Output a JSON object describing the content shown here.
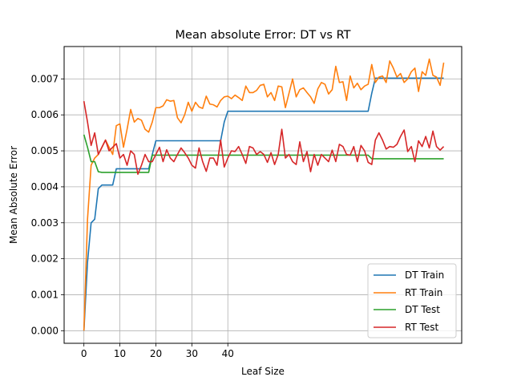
{
  "chart_data": {
    "type": "line",
    "title": "Mean absolute Error: DT vs RT",
    "xlabel": "Leaf Size",
    "ylabel": "Mean Absolute Error",
    "xlim": [
      -5.5,
      105
    ],
    "ylim": [
      -0.00035,
      0.0079
    ],
    "xticks": [
      0,
      10,
      20,
      30,
      40
    ],
    "xtick_labels": [
      "0",
      "10",
      "20",
      "30",
      "40"
    ],
    "yticks": [
      0.0,
      0.001,
      0.002,
      0.003,
      0.004,
      0.005,
      0.006,
      0.007
    ],
    "ytick_labels": [
      "0.000",
      "0.001",
      "0.002",
      "0.003",
      "0.004",
      "0.005",
      "0.006",
      "0.007"
    ],
    "grid": true,
    "legend_position": "lower-right",
    "series": [
      {
        "name": "DT Train",
        "color": "#1f77b4",
        "x": [
          0,
          1,
          2,
          3,
          4,
          5,
          6,
          7,
          8,
          9,
          10,
          11,
          12,
          13,
          14,
          15,
          16,
          17,
          18,
          19,
          20,
          21,
          22,
          23,
          24,
          25,
          26,
          27,
          28,
          29,
          30,
          31,
          32,
          33,
          34,
          35,
          36,
          37,
          38,
          39,
          40,
          41,
          42,
          43,
          44,
          45,
          46,
          47,
          48,
          49,
          50,
          51,
          52,
          53,
          54,
          55,
          56,
          57,
          58,
          59,
          60,
          61,
          62,
          63,
          64,
          65,
          66,
          67,
          68,
          69,
          70,
          71,
          72,
          73,
          74,
          75,
          76,
          77,
          78,
          79,
          80,
          81,
          82,
          83,
          84,
          85,
          86,
          87,
          88,
          89,
          90,
          91,
          92,
          93,
          94,
          95,
          96,
          97,
          98,
          99,
          100
        ],
        "values": [
          0.0,
          0.0019,
          0.003,
          0.0031,
          0.00395,
          0.00405,
          0.00405,
          0.00405,
          0.00405,
          0.0045,
          0.0045,
          0.0045,
          0.0045,
          0.0045,
          0.0045,
          0.0045,
          0.0045,
          0.0045,
          0.0045,
          0.0049,
          0.00528,
          0.00528,
          0.00528,
          0.00528,
          0.00528,
          0.00528,
          0.00528,
          0.00528,
          0.00528,
          0.00528,
          0.00528,
          0.00528,
          0.00528,
          0.00528,
          0.00528,
          0.00528,
          0.00528,
          0.00528,
          0.00528,
          0.0058,
          0.0061,
          0.0061,
          0.0061,
          0.0061,
          0.0061,
          0.0061,
          0.0061,
          0.0061,
          0.0061,
          0.0061,
          0.0061,
          0.0061,
          0.0061,
          0.0061,
          0.0061,
          0.0061,
          0.0061,
          0.0061,
          0.0061,
          0.0061,
          0.0061,
          0.0061,
          0.0061,
          0.0061,
          0.0061,
          0.0061,
          0.0061,
          0.0061,
          0.0061,
          0.0061,
          0.0061,
          0.0061,
          0.0061,
          0.0061,
          0.0061,
          0.0061,
          0.0061,
          0.0061,
          0.0061,
          0.0061,
          0.0066,
          0.00702,
          0.00702,
          0.00702,
          0.00702,
          0.00702,
          0.00702,
          0.00702,
          0.00702,
          0.00702,
          0.00702,
          0.00702,
          0.00702,
          0.00702,
          0.00702,
          0.00702,
          0.00702,
          0.00702,
          0.00702,
          0.00702,
          0.00702
        ]
      },
      {
        "name": "RT Train",
        "color": "#ff7f0e",
        "x": [
          0,
          1,
          2,
          3,
          4,
          5,
          6,
          7,
          8,
          9,
          10,
          11,
          12,
          13,
          14,
          15,
          16,
          17,
          18,
          19,
          20,
          21,
          22,
          23,
          24,
          25,
          26,
          27,
          28,
          29,
          30,
          31,
          32,
          33,
          34,
          35,
          36,
          37,
          38,
          39,
          40,
          41,
          42,
          43,
          44,
          45,
          46,
          47,
          48,
          49,
          50,
          51,
          52,
          53,
          54,
          55,
          56,
          57,
          58,
          59,
          60,
          61,
          62,
          63,
          64,
          65,
          66,
          67,
          68,
          69,
          70,
          71,
          72,
          73,
          74,
          75,
          76,
          77,
          78,
          79,
          80,
          81,
          82,
          83,
          84,
          85,
          86,
          87,
          88,
          89,
          90,
          91,
          92,
          93,
          94,
          95,
          96,
          97,
          98,
          99,
          100
        ],
        "values": [
          0.0,
          0.0031,
          0.0046,
          0.0048,
          0.0049,
          0.0051,
          0.0053,
          0.0051,
          0.0049,
          0.0057,
          0.00575,
          0.0051,
          0.0056,
          0.00615,
          0.0058,
          0.0059,
          0.00585,
          0.0056,
          0.00552,
          0.0058,
          0.0062,
          0.0062,
          0.00625,
          0.00642,
          0.00638,
          0.0064,
          0.00592,
          0.00578,
          0.006,
          0.00635,
          0.0061,
          0.00635,
          0.00622,
          0.00618,
          0.00652,
          0.0063,
          0.00628,
          0.00622,
          0.0064,
          0.0065,
          0.00652,
          0.00645,
          0.00655,
          0.00648,
          0.0064,
          0.0068,
          0.00662,
          0.00662,
          0.00668,
          0.00682,
          0.00685,
          0.0065,
          0.00662,
          0.0064,
          0.0068,
          0.00678,
          0.0062,
          0.0066,
          0.007,
          0.0065,
          0.0067,
          0.00675,
          0.00662,
          0.0065,
          0.00632,
          0.00672,
          0.0069,
          0.00685,
          0.00658,
          0.0067,
          0.00735,
          0.0069,
          0.00692,
          0.0064,
          0.00708,
          0.00675,
          0.00688,
          0.0067,
          0.0068,
          0.00685,
          0.0074,
          0.0069,
          0.00705,
          0.00708,
          0.0069,
          0.0075,
          0.0073,
          0.00705,
          0.00715,
          0.0069,
          0.007,
          0.0072,
          0.0073,
          0.00665,
          0.0072,
          0.0071,
          0.00755,
          0.0071,
          0.00705,
          0.00682,
          0.00745
        ]
      },
      {
        "name": "DT Test",
        "color": "#2ca02c",
        "x": [
          0,
          1,
          2,
          3,
          4,
          5,
          6,
          7,
          8,
          9,
          10,
          11,
          12,
          13,
          14,
          15,
          16,
          17,
          18,
          19,
          20,
          30,
          40,
          50,
          60,
          70,
          79,
          80,
          100
        ],
        "values": [
          0.00545,
          0.0051,
          0.0047,
          0.0047,
          0.00442,
          0.0044,
          0.0044,
          0.0044,
          0.0044,
          0.0044,
          0.0044,
          0.0044,
          0.0044,
          0.0044,
          0.0044,
          0.0044,
          0.0044,
          0.0044,
          0.0044,
          0.00488,
          0.00488,
          0.00488,
          0.00488,
          0.00488,
          0.00488,
          0.00488,
          0.00488,
          0.00478,
          0.00478
        ]
      },
      {
        "name": "RT Test",
        "color": "#d62728",
        "x": [
          0,
          1,
          2,
          3,
          4,
          5,
          6,
          7,
          8,
          9,
          10,
          11,
          12,
          13,
          14,
          15,
          16,
          17,
          18,
          19,
          20,
          21,
          22,
          23,
          24,
          25,
          26,
          27,
          28,
          29,
          30,
          31,
          32,
          33,
          34,
          35,
          36,
          37,
          38,
          39,
          40,
          41,
          42,
          43,
          44,
          45,
          46,
          47,
          48,
          49,
          50,
          51,
          52,
          53,
          54,
          55,
          56,
          57,
          58,
          59,
          60,
          61,
          62,
          63,
          64,
          65,
          66,
          67,
          68,
          69,
          70,
          71,
          72,
          73,
          74,
          75,
          76,
          77,
          78,
          79,
          80,
          81,
          82,
          83,
          84,
          85,
          86,
          87,
          88,
          89,
          90,
          91,
          92,
          93,
          94,
          95,
          96,
          97,
          98,
          99,
          100
        ],
        "values": [
          0.00638,
          0.0058,
          0.00515,
          0.0055,
          0.0049,
          0.0051,
          0.0053,
          0.005,
          0.0051,
          0.0052,
          0.0048,
          0.0049,
          0.0046,
          0.005,
          0.0049,
          0.00435,
          0.0046,
          0.0049,
          0.0047,
          0.0047,
          0.0049,
          0.0051,
          0.0047,
          0.00503,
          0.0048,
          0.0047,
          0.0049,
          0.00508,
          0.00495,
          0.0048,
          0.0046,
          0.00452,
          0.00508,
          0.0047,
          0.00443,
          0.0048,
          0.0048,
          0.0046,
          0.0053,
          0.00455,
          0.0048,
          0.005,
          0.00498,
          0.00512,
          0.0049,
          0.00465,
          0.00512,
          0.00508,
          0.0049,
          0.00498,
          0.0049,
          0.00468,
          0.00495,
          0.00462,
          0.0049,
          0.0056,
          0.0048,
          0.0049,
          0.0047,
          0.00462,
          0.00525,
          0.0047,
          0.00498,
          0.00442,
          0.0049,
          0.0046,
          0.0049,
          0.0048,
          0.0047,
          0.00502,
          0.0047,
          0.00518,
          0.00512,
          0.0049,
          0.00488,
          0.00512,
          0.0047,
          0.00515,
          0.005,
          0.00468,
          0.00462,
          0.0053,
          0.0055,
          0.0053,
          0.00505,
          0.00512,
          0.0051,
          0.00518,
          0.0054,
          0.00558,
          0.00498,
          0.00512,
          0.0047,
          0.00528,
          0.00512,
          0.0054,
          0.00508,
          0.00555,
          0.00512,
          0.00502,
          0.00512
        ]
      }
    ]
  }
}
